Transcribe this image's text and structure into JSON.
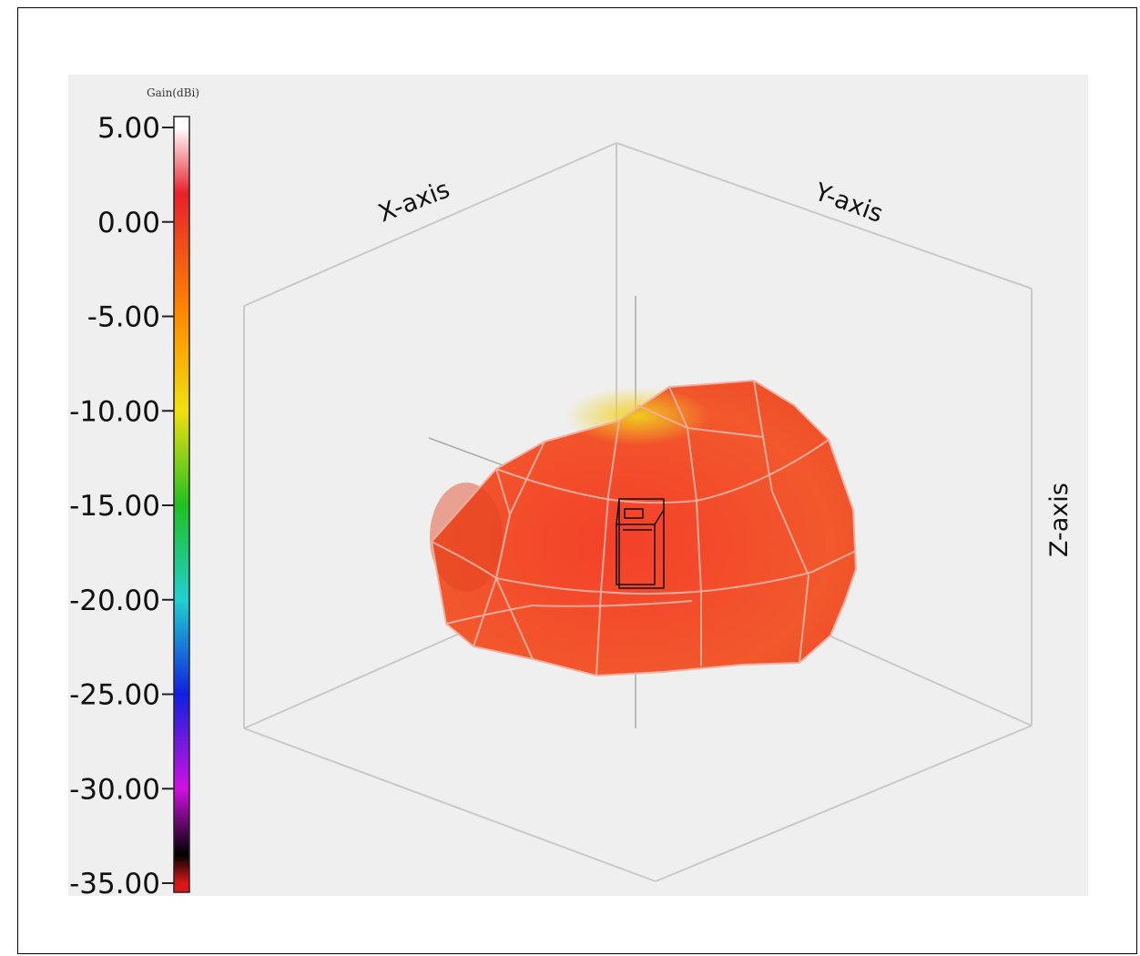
{
  "chart_data": {
    "type": "3d-radiation-pattern",
    "colorbar": {
      "title": "Gain(dBi)",
      "ticks": [
        "5.00",
        "0.00",
        "-5.00",
        "-10.00",
        "-15.00",
        "-20.00",
        "-25.00",
        "-30.00",
        "-35.00"
      ],
      "min": -35,
      "max": 5,
      "colormap": [
        {
          "value": 5,
          "color": "#ffffff"
        },
        {
          "value": 1.5,
          "color": "#e8202a"
        },
        {
          "value": -5,
          "color": "#ff8c00"
        },
        {
          "value": -10,
          "color": "#f0e010"
        },
        {
          "value": -15,
          "color": "#20c020"
        },
        {
          "value": -20,
          "color": "#20d0d0"
        },
        {
          "value": -25,
          "color": "#1020e0"
        },
        {
          "value": -30,
          "color": "#d010e0"
        },
        {
          "value": -33.5,
          "color": "#000000"
        },
        {
          "value": -35,
          "color": "#d81818"
        }
      ]
    },
    "axes": {
      "x": "X-axis",
      "y": "Y-axis",
      "z": "Z-axis"
    },
    "pattern": {
      "surface_color": "#f4502a",
      "peak_color": "#f0d020",
      "mesh_color": "#f2b0a0"
    }
  }
}
